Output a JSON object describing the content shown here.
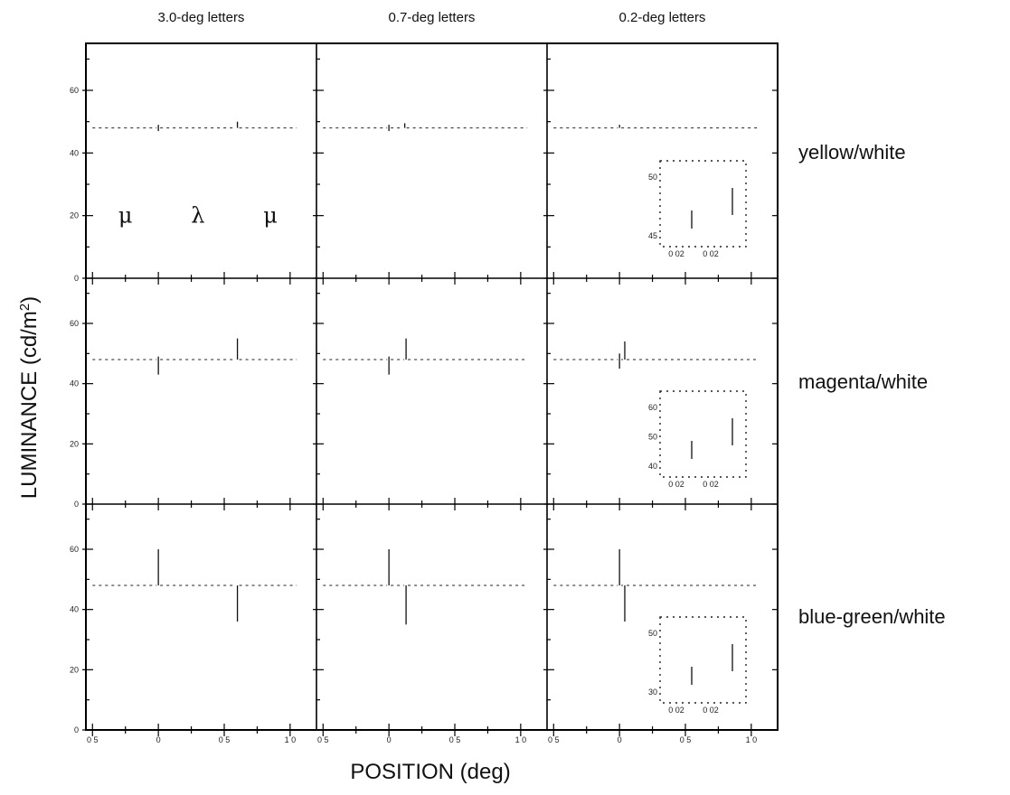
{
  "chart_data": {
    "type": "line",
    "xlabel": "POSITION (deg)",
    "ylabel": "LUMINANCE (cd/m2)",
    "ylabel_parts": {
      "prefix": "LUMINANCE (cd/m",
      "sup": "2",
      "suffix": ")"
    },
    "ylim": [
      0,
      75
    ],
    "yticks": [
      "0",
      "20",
      "40",
      "60"
    ],
    "columns": [
      {
        "title": "3.0-deg letters",
        "xlim": [
          -0.55,
          1.2
        ],
        "xticks": [
          "0 5",
          "0",
          "0 5",
          "1 0"
        ],
        "xtick_values": [
          -0.5,
          0,
          0.5,
          1.0
        ]
      },
      {
        "title": "0.7-deg letters",
        "xlim": [
          -0.55,
          1.2
        ],
        "xticks": [
          "0 5",
          "0",
          "0 5",
          "1 0"
        ],
        "xtick_values": [
          -0.5,
          0,
          0.5,
          1.0
        ]
      },
      {
        "title": "0.2-deg letters",
        "xlim": [
          -0.55,
          1.2
        ],
        "xticks": [
          "0 5",
          "0",
          "0 5",
          "1 0"
        ],
        "xtick_values": [
          -0.5,
          0,
          0.5,
          1.0
        ]
      }
    ],
    "rows": [
      {
        "name": "yellow/white",
        "baseline": 48,
        "traces": [
          {
            "step_x": 0,
            "low": 47,
            "high": 49,
            "step2_x": 0.6,
            "low2": 48,
            "high2": 50
          },
          {
            "step_x": 0,
            "low": 47,
            "high": 49,
            "step2_x": 0.12,
            "low2": 48,
            "high2": 49.5
          },
          {
            "step_x": 0,
            "low": 48,
            "high": 49,
            "step2_x": null,
            "low2": null,
            "high2": null
          }
        ],
        "letters": [
          "μ",
          "λ",
          "μ"
        ],
        "inset": {
          "yticks": [
            "50",
            "45"
          ],
          "xticks": [
            "0 02",
            "0 02"
          ]
        }
      },
      {
        "name": "magenta/white",
        "baseline": 48,
        "traces": [
          {
            "step_x": 0,
            "low": 43,
            "high": 49,
            "step2_x": 0.6,
            "low2": 48,
            "high2": 55
          },
          {
            "step_x": 0,
            "low": 43,
            "high": 49,
            "step2_x": 0.13,
            "low2": 48,
            "high2": 55
          },
          {
            "step_x": 0,
            "low": 45,
            "high": 50,
            "step2_x": 0.04,
            "low2": 48,
            "high2": 54
          }
        ],
        "inset": {
          "yticks": [
            "60",
            "50",
            "40"
          ],
          "xticks": [
            "0 02",
            "0 02"
          ]
        }
      },
      {
        "name": "blue-green/white",
        "baseline": 48,
        "traces": [
          {
            "step_x": 0,
            "low": 48,
            "high": 60,
            "step2_x": 0.6,
            "low2": 36,
            "high2": 48
          },
          {
            "step_x": 0,
            "low": 48,
            "high": 60,
            "step2_x": 0.13,
            "low2": 35,
            "high2": 48
          },
          {
            "step_x": 0,
            "low": 48,
            "high": 60,
            "step2_x": 0.04,
            "low2": 36,
            "high2": 48
          }
        ],
        "inset": {
          "yticks": [
            "50",
            "30"
          ],
          "xticks": [
            "0 02",
            "0 02"
          ]
        }
      }
    ]
  }
}
